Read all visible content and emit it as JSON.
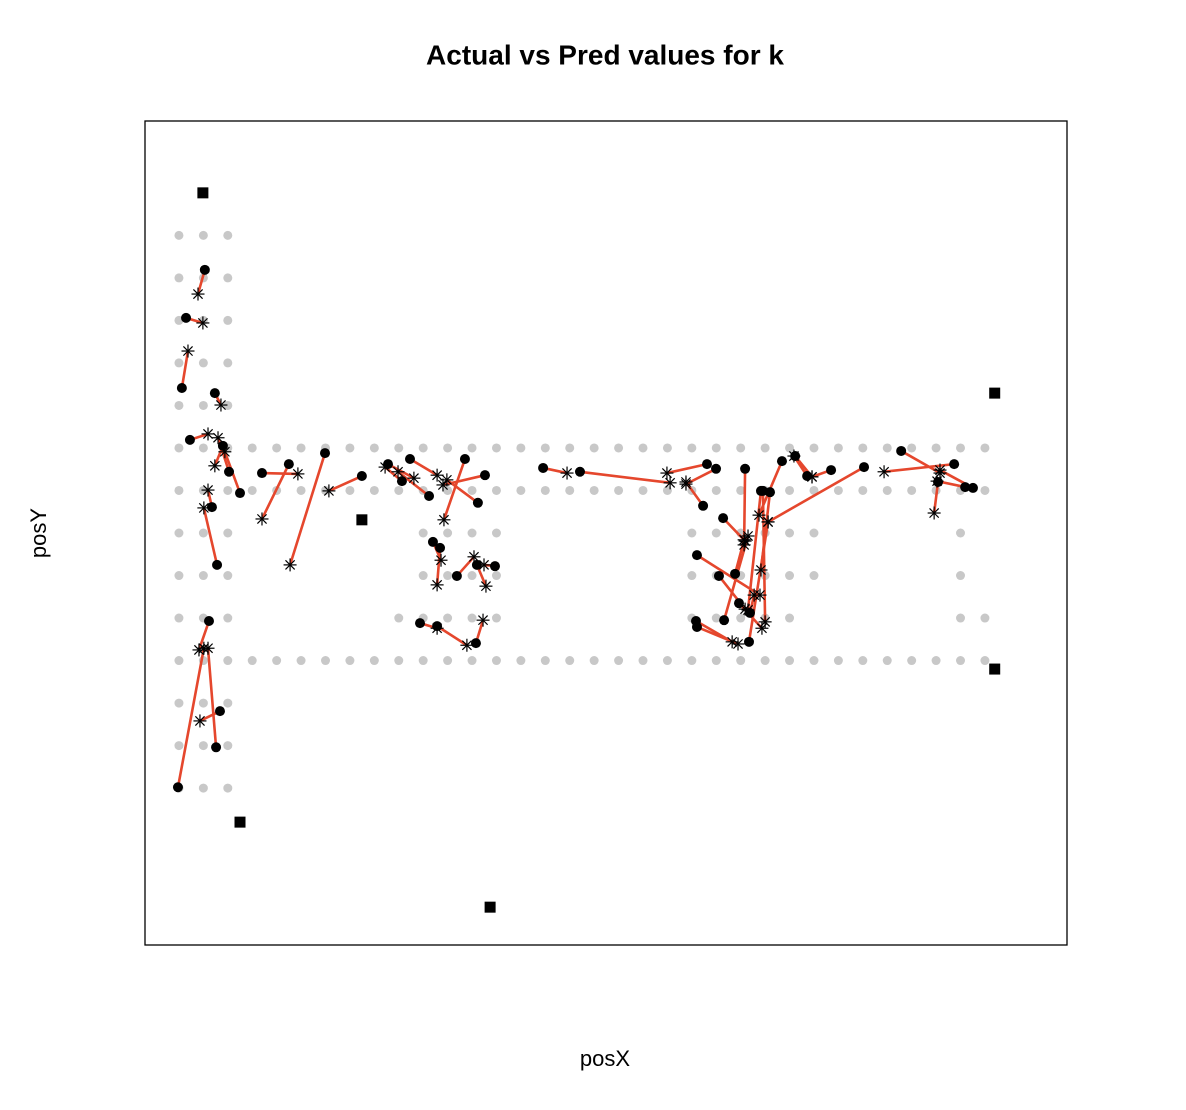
{
  "chart_data": {
    "type": "scatter",
    "title": "Actual vs Pred values for k",
    "x_label": "posX",
    "y_label": "posY",
    "xlim": [
      -1.39,
      36.36
    ],
    "ylim": [
      -3.69,
      15.69
    ],
    "link_color": "#e5472d",
    "series": [
      {
        "marker": "dot",
        "color": "#c8c8c8",
        "x": [
          0,
          1,
          2,
          0,
          1,
          2,
          0,
          1,
          2,
          0,
          1,
          2,
          0,
          1,
          2,
          0,
          1,
          2,
          0,
          1,
          2,
          0,
          1,
          2,
          0,
          1,
          2,
          0,
          1,
          2,
          0,
          1,
          2,
          0,
          1,
          2,
          0,
          1,
          2,
          0,
          1,
          2,
          3,
          4,
          5,
          6,
          7,
          8,
          9,
          10,
          11,
          12,
          13,
          14,
          15,
          16,
          17,
          18,
          19,
          20,
          21,
          22,
          23,
          24,
          25,
          26,
          27,
          28,
          29,
          30,
          31,
          32,
          33,
          3,
          4,
          5,
          6,
          7,
          8,
          9,
          10,
          11,
          12,
          13,
          14,
          15,
          16,
          17,
          18,
          19,
          20,
          21,
          22,
          23,
          24,
          25,
          26,
          27,
          28,
          29,
          30,
          31,
          32,
          33,
          3,
          4,
          5,
          6,
          7,
          8,
          9,
          10,
          11,
          12,
          13,
          14,
          15,
          16,
          17,
          18,
          19,
          20,
          21,
          22,
          23,
          24,
          25,
          26,
          27,
          28,
          29,
          30,
          31,
          32,
          33,
          9,
          10,
          11,
          12,
          13,
          21,
          22,
          23,
          24,
          25,
          32,
          33,
          10,
          11,
          12,
          13,
          21,
          22,
          23,
          24,
          25,
          26,
          32,
          10,
          11,
          12,
          13,
          21,
          22,
          23,
          24,
          25,
          26,
          32
        ],
        "values": [
          0,
          0,
          0,
          1,
          1,
          1,
          2,
          2,
          2,
          3,
          3,
          3,
          4,
          4,
          4,
          5,
          5,
          5,
          6,
          6,
          6,
          7,
          7,
          7,
          8,
          8,
          8,
          9,
          9,
          9,
          10,
          10,
          10,
          11,
          11,
          11,
          12,
          12,
          12,
          13,
          13,
          13,
          8,
          8,
          8,
          8,
          8,
          8,
          8,
          8,
          8,
          8,
          8,
          8,
          8,
          8,
          8,
          8,
          8,
          8,
          8,
          8,
          8,
          8,
          8,
          8,
          8,
          8,
          8,
          8,
          8,
          8,
          8,
          7,
          7,
          7,
          7,
          7,
          7,
          7,
          7,
          7,
          7,
          7,
          7,
          7,
          7,
          7,
          7,
          7,
          7,
          7,
          7,
          7,
          7,
          7,
          7,
          7,
          7,
          7,
          7,
          7,
          7,
          7,
          3,
          3,
          3,
          3,
          3,
          3,
          3,
          3,
          3,
          3,
          3,
          3,
          3,
          3,
          3,
          3,
          3,
          3,
          3,
          3,
          3,
          3,
          3,
          3,
          3,
          3,
          3,
          3,
          3,
          3,
          3,
          4,
          4,
          4,
          4,
          4,
          4,
          4,
          4,
          4,
          4,
          4,
          4,
          5,
          5,
          5,
          5,
          5,
          5,
          5,
          5,
          5,
          5,
          5,
          6,
          6,
          6,
          6,
          6,
          6,
          6,
          6,
          6,
          6,
          6
        ]
      },
      {
        "marker": "square",
        "color": "#000000",
        "x": [
          0.98,
          33.4,
          7.49,
          33.4,
          2.5,
          12.74
        ],
        "values": [
          14.0,
          9.29,
          6.31,
          2.8,
          -0.8,
          -2.8
        ]
      },
      {
        "marker": "circle",
        "color": "#000000",
        "x": [
          1.06,
          0.29,
          0.12,
          1.47,
          0.45,
          1.8,
          2.05,
          2.5,
          1.35,
          1.56,
          1.23,
          1.68,
          1.52,
          -0.04,
          3.4,
          4.5,
          5.98,
          7.49,
          8.56,
          9.46,
          9.13,
          10.24,
          11.71,
          12.53,
          12.24,
          10.4,
          10.69,
          11.38,
          12.2,
          12.94,
          9.87,
          10.57,
          12.16,
          14.91,
          16.42,
          21.62,
          21.99,
          21.46,
          22.28,
          23.18,
          21.21,
          22.11,
          22.77,
          22.32,
          23.83,
          24.2,
          24.69,
          23.91,
          23.34,
          21.21,
          21.17,
          22.93,
          25.23,
          25.72,
          26.7,
          28.05,
          29.57,
          31.74,
          31.08,
          32.19,
          32.51,
          23.38
        ],
        "values": [
          12.19,
          11.06,
          9.41,
          9.29,
          8.19,
          8.05,
          7.44,
          6.94,
          6.61,
          5.25,
          3.93,
          1.81,
          0.96,
          0.02,
          7.41,
          7.62,
          7.88,
          7.34,
          7.62,
          7.74,
          7.22,
          6.87,
          7.74,
          7.36,
          6.71,
          5.79,
          5.65,
          4.99,
          5.25,
          5.22,
          3.88,
          3.81,
          3.41,
          7.53,
          7.44,
          7.62,
          7.51,
          6.64,
          6.35,
          7.51,
          5.48,
          4.99,
          5.04,
          3.95,
          6.99,
          6.96,
          7.69,
          6.99,
          3.44,
          3.79,
          3.93,
          4.35,
          7.81,
          7.34,
          7.48,
          7.55,
          7.93,
          7.62,
          7.2,
          7.08,
          7.06,
          4.12
        ]
      },
      {
        "marker": "asterisk",
        "color": "#000000",
        "x": [
          0.78,
          0.98,
          0.37,
          1.72,
          1.19,
          1.47,
          1.6,
          1.88,
          1.19,
          1.02,
          0.82,
          0.86,
          1.19,
          1.02,
          4.87,
          3.4,
          4.55,
          6.14,
          9.62,
          10.57,
          8.44,
          8.97,
          10.85,
          10.81,
          10.97,
          10.73,
          10.57,
          12.08,
          12.57,
          12.49,
          10.57,
          11.79,
          12.45,
          15.89,
          20.11,
          19.98,
          20.76,
          20.76,
          23.18,
          23.14,
          23.79,
          23.18,
          23.14,
          23.3,
          23.3,
          23.83,
          23.75,
          24.0,
          24.12,
          22.89,
          22.65,
          23.87,
          25.92,
          25.18,
          25.92,
          24.12,
          31.16,
          28.87,
          30.92,
          31.04,
          31.16,
          23.55
        ],
        "values": [
          11.62,
          10.94,
          10.28,
          9.01,
          8.33,
          7.58,
          8.24,
          7.91,
          7.01,
          6.59,
          3.25,
          1.58,
          3.29,
          3.29,
          7.39,
          6.33,
          5.25,
          6.99,
          7.29,
          7.36,
          7.55,
          7.44,
          6.31,
          7.13,
          7.25,
          5.36,
          4.78,
          5.44,
          4.75,
          5.25,
          3.76,
          3.36,
          3.95,
          7.41,
          7.18,
          7.41,
          7.15,
          7.2,
          5.81,
          5.72,
          4.54,
          4.21,
          5.84,
          5.93,
          4.19,
          5.13,
          6.42,
          3.91,
          6.26,
          3.39,
          3.44,
          3.76,
          7.32,
          7.81,
          7.32,
          6.26,
          7.41,
          7.44,
          6.47,
          7.22,
          7.48,
          4.54
        ]
      }
    ]
  }
}
